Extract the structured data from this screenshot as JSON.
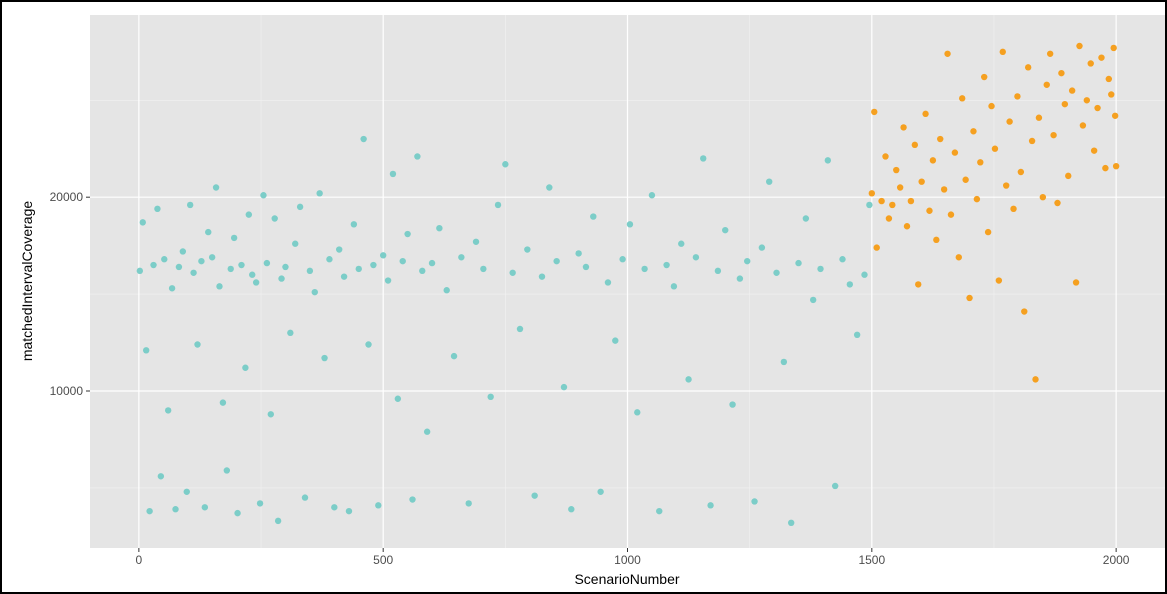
{
  "chart_data": {
    "type": "scatter",
    "x_label": "ScenarioNumber",
    "y_label": "matchedIntervalCoverage",
    "xlim": [
      -100,
      2100
    ],
    "ylim": [
      1900,
      29400
    ],
    "xticks": [
      0,
      500,
      1000,
      1500,
      2000
    ],
    "yticks": [
      10000,
      20000
    ],
    "minor_xticks": [
      250,
      750,
      1250,
      1750
    ],
    "minor_yticks": [
      5000,
      15000,
      25000
    ],
    "grid": true,
    "series": [
      {
        "color": "#7ccdc8",
        "x": [
          2,
          8,
          15,
          22,
          30,
          38,
          45,
          52,
          60,
          68,
          75,
          82,
          90,
          98,
          105,
          112,
          120,
          128,
          135,
          142,
          150,
          158,
          165,
          172,
          180,
          188,
          195,
          202,
          210,
          218,
          225,
          232,
          240,
          248,
          255,
          262,
          270,
          278,
          285,
          292,
          300,
          310,
          320,
          330,
          340,
          350,
          360,
          370,
          380,
          390,
          400,
          410,
          420,
          430,
          440,
          450,
          460,
          470,
          480,
          490,
          500,
          510,
          520,
          530,
          540,
          550,
          560,
          570,
          580,
          590,
          600,
          615,
          630,
          645,
          660,
          675,
          690,
          705,
          720,
          735,
          750,
          765,
          780,
          795,
          810,
          825,
          840,
          855,
          870,
          885,
          900,
          915,
          930,
          945,
          960,
          975,
          990,
          1005,
          1020,
          1035,
          1050,
          1065,
          1080,
          1095,
          1110,
          1125,
          1140,
          1155,
          1170,
          1185,
          1200,
          1215,
          1230,
          1245,
          1260,
          1275,
          1290,
          1305,
          1320,
          1335,
          1350,
          1365,
          1380,
          1395,
          1410,
          1425,
          1440,
          1455,
          1470,
          1485,
          1495
        ],
        "values": [
          16200,
          18700,
          12100,
          3800,
          16500,
          19400,
          5600,
          16800,
          9000,
          15300,
          3900,
          16400,
          17200,
          4800,
          19600,
          16100,
          12400,
          16700,
          4000,
          18200,
          16900,
          20500,
          15400,
          9400,
          5900,
          16300,
          17900,
          3700,
          16500,
          11200,
          19100,
          16000,
          15600,
          4200,
          20100,
          16600,
          8800,
          18900,
          3300,
          15800,
          16400,
          13000,
          17600,
          19500,
          4500,
          16200,
          15100,
          20200,
          11700,
          16800,
          4000,
          17300,
          15900,
          3800,
          18600,
          16300,
          23000,
          12400,
          16500,
          4100,
          17000,
          15700,
          21200,
          9600,
          16700,
          18100,
          4400,
          22100,
          16200,
          7900,
          16600,
          18400,
          15200,
          11800,
          16900,
          4200,
          17700,
          16300,
          9700,
          19600,
          21700,
          16100,
          13200,
          17300,
          4600,
          15900,
          20500,
          16700,
          10200,
          3900,
          17100,
          16400,
          19000,
          4800,
          15600,
          12600,
          16800,
          18600,
          8900,
          16300,
          20100,
          3800,
          16500,
          15400,
          17600,
          10600,
          16900,
          22000,
          4100,
          16200,
          18300,
          9300,
          15800,
          16700,
          4300,
          17400,
          20800,
          16100,
          11500,
          3200,
          16600,
          18900,
          14700,
          16300,
          21900,
          5100,
          16800,
          15500,
          12900,
          16000,
          19600
        ]
      },
      {
        "color": "#f5a020",
        "x": [
          1500,
          1505,
          1510,
          1520,
          1528,
          1535,
          1542,
          1550,
          1558,
          1565,
          1572,
          1580,
          1588,
          1595,
          1602,
          1610,
          1618,
          1625,
          1632,
          1640,
          1648,
          1655,
          1662,
          1670,
          1678,
          1685,
          1692,
          1700,
          1708,
          1715,
          1722,
          1730,
          1738,
          1745,
          1752,
          1760,
          1768,
          1775,
          1782,
          1790,
          1798,
          1805,
          1812,
          1820,
          1828,
          1835,
          1842,
          1850,
          1858,
          1865,
          1872,
          1880,
          1888,
          1895,
          1902,
          1910,
          1918,
          1925,
          1932,
          1940,
          1948,
          1955,
          1962,
          1970,
          1978,
          1985,
          1990,
          1995,
          1998,
          2000
        ],
        "values": [
          20200,
          24400,
          17400,
          19800,
          22100,
          18900,
          19600,
          21400,
          20500,
          23600,
          18500,
          19800,
          22700,
          15500,
          20800,
          24300,
          19300,
          21900,
          17800,
          23000,
          20400,
          27400,
          19100,
          22300,
          16900,
          25100,
          20900,
          14800,
          23400,
          19900,
          21800,
          26200,
          18200,
          24700,
          22500,
          15700,
          27500,
          20600,
          23900,
          19400,
          25200,
          21300,
          14100,
          26700,
          22900,
          10600,
          24100,
          20000,
          25800,
          27400,
          23200,
          19700,
          26400,
          24800,
          21100,
          25500,
          15600,
          27800,
          23700,
          25000,
          26900,
          22400,
          24600,
          27200,
          21500,
          26100,
          25300,
          27700,
          24200,
          21600
        ]
      }
    ]
  }
}
